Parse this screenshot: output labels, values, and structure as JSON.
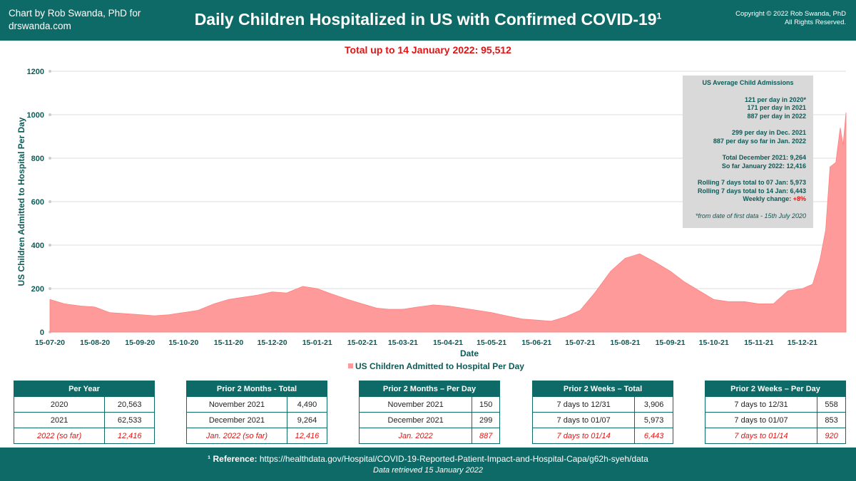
{
  "header": {
    "credit_line1": "Chart by Rob Swanda, PhD for",
    "credit_line2": "drswanda.com",
    "title": "Daily Children Hospitalized in US with Confirmed COVID-19",
    "title_sup": "1",
    "copyright_line1": "Copyright © 2022 Rob Swanda, PhD",
    "copyright_line2": "All Rights Reserved."
  },
  "total_line": "Total up to 14 January 2022: 95,512",
  "infobox": {
    "title": "US Average Child Admissions",
    "lines1": [
      "121 per day in 2020*",
      "171 per day in 2021",
      "887 per day in 2022"
    ],
    "lines2": [
      "299 per day in Dec. 2021",
      "887 per day so far in Jan. 2022"
    ],
    "lines3": [
      "Total December 2021: 9,264",
      "So far January 2022: 12,416"
    ],
    "lines4": [
      "Rolling 7 days total to 07 Jan: 5,973",
      "Rolling 7 days total to 14 Jan: 6,443"
    ],
    "weekly_label": "Weekly change: ",
    "weekly_value": "+8%",
    "note": "*from date of first data - 15th July 2020"
  },
  "chart_data": {
    "type": "area",
    "title": "Daily Children Hospitalized in US with Confirmed COVID-19",
    "xlabel": "Date",
    "ylabel": "US Children Admitted to Hospital Per Day",
    "ylim": [
      0,
      1200
    ],
    "yticks": [
      0,
      200,
      400,
      600,
      800,
      1000,
      1200
    ],
    "grid": true,
    "legend_position": "bottom",
    "xtick_labels": [
      "15-07-20",
      "15-08-20",
      "15-09-20",
      "15-10-20",
      "15-11-20",
      "15-12-20",
      "15-01-21",
      "15-02-21",
      "15-03-21",
      "15-04-21",
      "15-05-21",
      "15-06-21",
      "15-07-21",
      "15-08-21",
      "15-09-21",
      "15-10-21",
      "15-11-21",
      "15-12-21"
    ],
    "series": [
      {
        "name": "US Children Admitted to Hospital Per Day",
        "color": "#ff9a9a",
        "x": [
          "2020-07-15",
          "2020-07-25",
          "2020-08-05",
          "2020-08-15",
          "2020-08-25",
          "2020-09-05",
          "2020-09-15",
          "2020-09-25",
          "2020-10-05",
          "2020-10-15",
          "2020-10-25",
          "2020-11-05",
          "2020-11-15",
          "2020-11-25",
          "2020-12-05",
          "2020-12-15",
          "2020-12-25",
          "2021-01-05",
          "2021-01-15",
          "2021-01-25",
          "2021-02-05",
          "2021-02-15",
          "2021-02-25",
          "2021-03-05",
          "2021-03-15",
          "2021-03-25",
          "2021-04-05",
          "2021-04-15",
          "2021-04-25",
          "2021-05-05",
          "2021-05-15",
          "2021-05-25",
          "2021-06-05",
          "2021-06-15",
          "2021-06-25",
          "2021-07-05",
          "2021-07-15",
          "2021-07-25",
          "2021-08-05",
          "2021-08-15",
          "2021-08-25",
          "2021-09-05",
          "2021-09-15",
          "2021-09-25",
          "2021-10-05",
          "2021-10-15",
          "2021-10-25",
          "2021-11-05",
          "2021-11-15",
          "2021-11-25",
          "2021-12-05",
          "2021-12-15",
          "2021-12-22",
          "2021-12-27",
          "2021-12-31",
          "2022-01-03",
          "2022-01-07",
          "2022-01-10",
          "2022-01-12",
          "2022-01-14"
        ],
        "y": [
          150,
          130,
          120,
          115,
          90,
          85,
          80,
          75,
          80,
          90,
          100,
          130,
          150,
          160,
          170,
          185,
          180,
          210,
          200,
          175,
          150,
          130,
          110,
          105,
          105,
          115,
          125,
          120,
          110,
          100,
          90,
          75,
          60,
          55,
          50,
          70,
          100,
          180,
          280,
          340,
          360,
          320,
          280,
          230,
          190,
          150,
          140,
          140,
          130,
          130,
          190,
          200,
          220,
          330,
          470,
          760,
          780,
          940,
          860,
          1010
        ]
      }
    ]
  },
  "tables": [
    {
      "header": "Per Year",
      "rows": [
        {
          "label": "2020",
          "value": "20,563"
        },
        {
          "label": "2021",
          "value": "62,533"
        },
        {
          "label": "2022 (so far)",
          "value": "12,416"
        }
      ]
    },
    {
      "header": "Prior 2 Months - Total",
      "rows": [
        {
          "label": "November 2021",
          "value": "4,490"
        },
        {
          "label": "December 2021",
          "value": "9,264"
        },
        {
          "label": "Jan. 2022 (so far)",
          "value": "12,416"
        }
      ]
    },
    {
      "header": "Prior 2 Months – Per Day",
      "rows": [
        {
          "label": "November 2021",
          "value": "150"
        },
        {
          "label": "December 2021",
          "value": "299"
        },
        {
          "label": "Jan. 2022",
          "value": "887"
        }
      ]
    },
    {
      "header": "Prior 2 Weeks – Total",
      "rows": [
        {
          "label": "7 days to 12/31",
          "value": "3,906"
        },
        {
          "label": "7 days to 01/07",
          "value": "5,973"
        },
        {
          "label": "7 days to 01/14",
          "value": "6,443"
        }
      ]
    },
    {
      "header": "Prior 2 Weeks – Per Day",
      "rows": [
        {
          "label": "7 days to 12/31",
          "value": "558"
        },
        {
          "label": "7 days to 01/07",
          "value": "853"
        },
        {
          "label": "7 days to 01/14",
          "value": "920"
        }
      ]
    }
  ],
  "footer": {
    "ref_label": "¹ Reference:",
    "ref_url": "https://healthdata.gov/Hospital/COVID-19-Reported-Patient-Impact-and-Hospital-Capa/g62h-syeh/data",
    "retrieved": "Data retrieved 15 January 2022"
  }
}
